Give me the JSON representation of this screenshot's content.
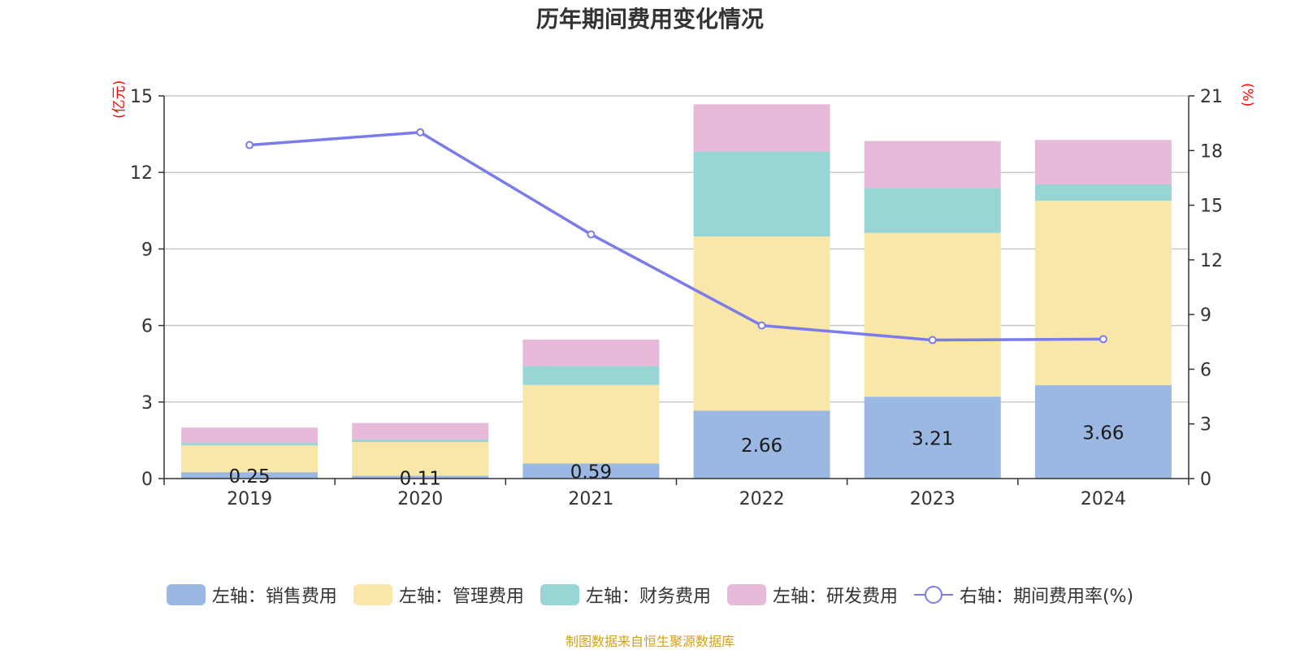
{
  "title": "历年期间费用变化情况",
  "source": "制图数据来自恒生聚源数据库",
  "colors": {
    "sales": "#9bb8e3",
    "admin": "#f8e7a9",
    "finance": "#98d5d5",
    "rd": "#e8bad9",
    "rate": "#7b7beb",
    "unit": "#ff0000",
    "grid": "#c8c8c8",
    "axis": "#333333",
    "text": "#333333"
  },
  "chart_data": {
    "type": "bar",
    "stacked": true,
    "categories": [
      "2019",
      "2020",
      "2021",
      "2022",
      "2023",
      "2024"
    ],
    "left_axis": {
      "unit": "(亿元)",
      "ylim": [
        0,
        15
      ],
      "ticks": [
        "0",
        "3",
        "6",
        "9",
        "12",
        "15"
      ]
    },
    "right_axis": {
      "unit": "(%)",
      "ylim": [
        0,
        21
      ],
      "ticks": [
        "0",
        "3",
        "6",
        "9",
        "12",
        "15",
        "18",
        "21"
      ]
    },
    "grid": true,
    "legend_position": "bottom",
    "series": [
      {
        "key": "sales",
        "name": "左轴：销售费用",
        "axis": "left",
        "type": "bar",
        "values": [
          0.25,
          0.11,
          0.59,
          2.66,
          3.21,
          3.66
        ],
        "labels": [
          "0.25",
          "0.11",
          "0.59",
          "2.66",
          "3.21",
          "3.66"
        ]
      },
      {
        "key": "admin",
        "name": "左轴：管理费用",
        "axis": "left",
        "type": "bar",
        "values": [
          1.05,
          1.32,
          3.08,
          6.83,
          6.42,
          7.23
        ]
      },
      {
        "key": "finance",
        "name": "左轴：财务费用",
        "axis": "left",
        "type": "bar",
        "values": [
          0.1,
          0.1,
          0.75,
          3.33,
          1.76,
          0.64
        ]
      },
      {
        "key": "rd",
        "name": "左轴：研发费用",
        "axis": "left",
        "type": "bar",
        "values": [
          0.6,
          0.65,
          1.03,
          1.85,
          1.84,
          1.74
        ]
      },
      {
        "key": "rate",
        "name": "右轴：期间费用率(%)",
        "axis": "right",
        "type": "line",
        "values": [
          18.3,
          19.0,
          13.4,
          8.4,
          7.6,
          7.65
        ]
      }
    ]
  }
}
